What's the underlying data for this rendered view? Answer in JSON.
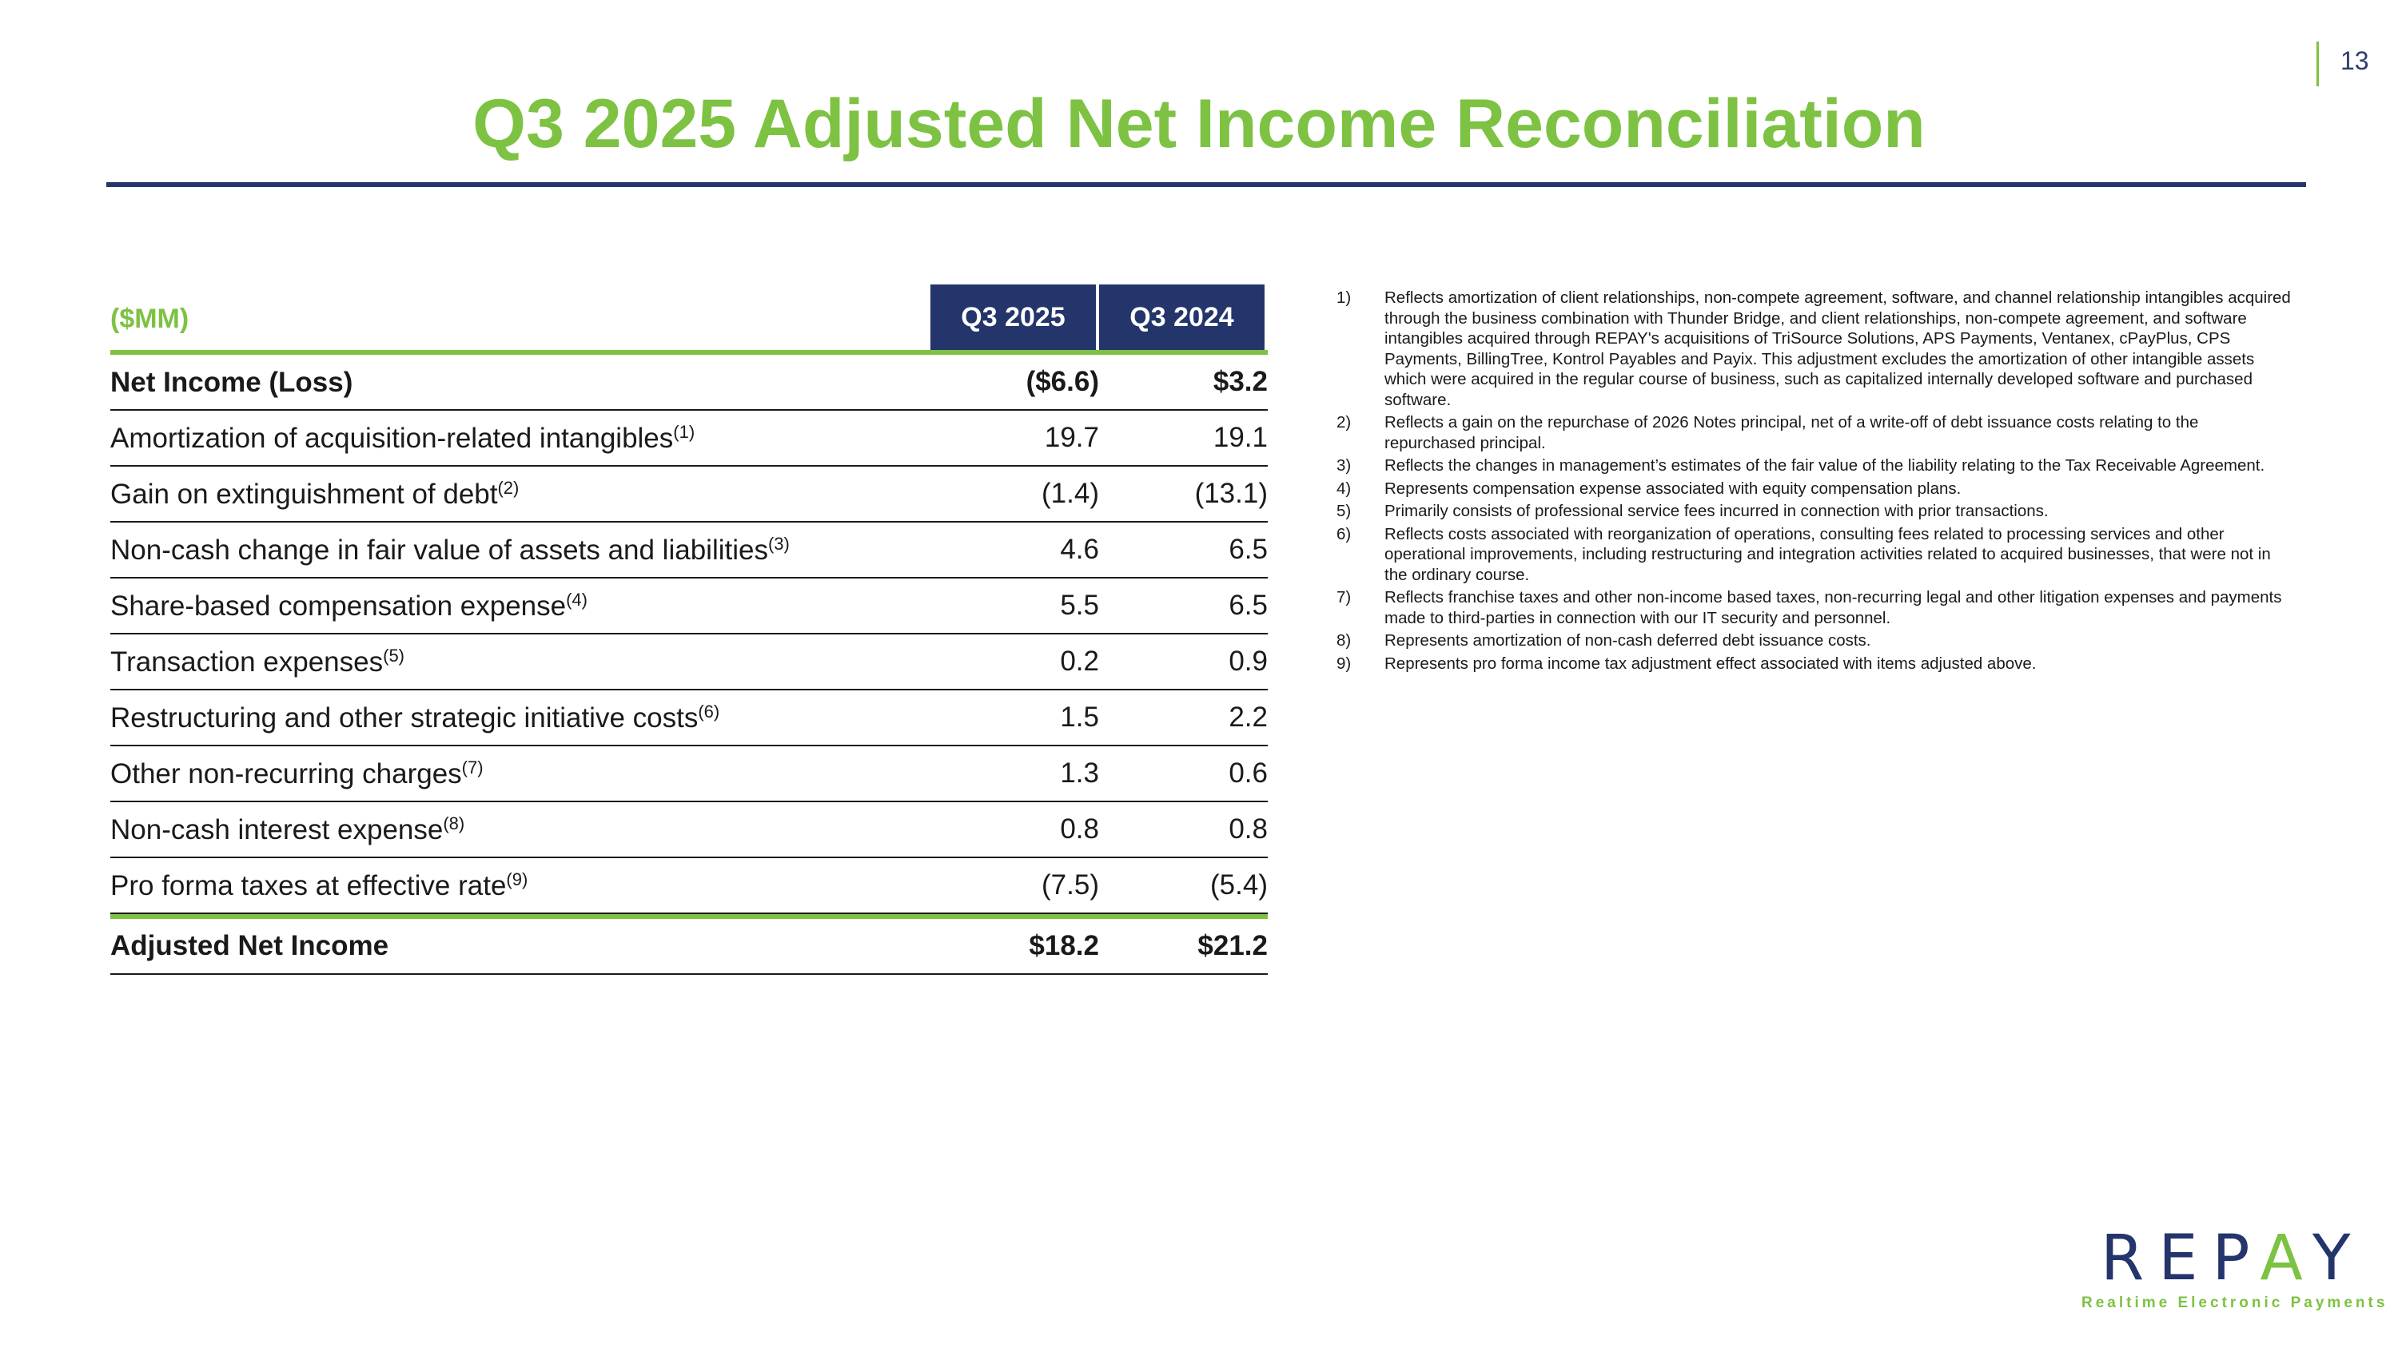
{
  "page_number": "13",
  "title": "Q3 2025 Adjusted Net Income Reconciliation",
  "table": {
    "unit_label": "($MM)",
    "columns": [
      "Q3 2025",
      "Q3 2024"
    ],
    "rows": [
      {
        "label": "Net Income (Loss)",
        "note": "",
        "v1": "($6.6)",
        "v2": "$3.2"
      },
      {
        "label": "Amortization of acquisition-related intangibles",
        "note": "(1)",
        "v1": "19.7",
        "v2": "19.1"
      },
      {
        "label": "Gain on extinguishment of debt",
        "note": "(2)",
        "v1": "(1.4)",
        "v2": "(13.1)"
      },
      {
        "label": "Non-cash change in fair value of assets and liabilities",
        "note": "(3)",
        "v1": "4.6",
        "v2": "6.5"
      },
      {
        "label": "Share-based compensation expense",
        "note": "(4)",
        "v1": "5.5",
        "v2": "6.5"
      },
      {
        "label": "Transaction expenses",
        "note": "(5)",
        "v1": "0.2",
        "v2": "0.9"
      },
      {
        "label": "Restructuring and other strategic initiative costs",
        "note": "(6)",
        "v1": "1.5",
        "v2": "2.2"
      },
      {
        "label": "Other non-recurring charges",
        "note": "(7)",
        "v1": "1.3",
        "v2": "0.6"
      },
      {
        "label": "Non-cash interest expense",
        "note": "(8)",
        "v1": "0.8",
        "v2": "0.8"
      },
      {
        "label": "Pro forma taxes at effective rate",
        "note": "(9)",
        "v1": "(7.5)",
        "v2": "(5.4)"
      }
    ],
    "total": {
      "label": "Adjusted Net Income",
      "v1": "$18.2",
      "v2": "$21.2"
    }
  },
  "footnotes": [
    {
      "num": "1)",
      "text": "Reflects amortization of client relationships, non-compete agreement, software, and channel relationship intangibles acquired through the business combination with Thunder Bridge, and client relationships, non-compete agreement, and software intangibles acquired through REPAY's acquisitions of TriSource Solutions, APS Payments, Ventanex, cPayPlus, CPS Payments, BillingTree, Kontrol Payables and Payix. This adjustment excludes the amortization of other intangible assets which were acquired in the regular course of business, such as capitalized internally developed software and purchased software."
    },
    {
      "num": "2)",
      "text": "Reflects a gain on the repurchase of 2026 Notes principal, net of a write-off of debt issuance costs relating to the repurchased principal."
    },
    {
      "num": "3)",
      "text": "Reflects the changes in management’s estimates of the fair value of the liability relating to the Tax Receivable Agreement."
    },
    {
      "num": "4)",
      "text": "Represents compensation expense associated with equity compensation plans."
    },
    {
      "num": "5)",
      "text": "Primarily consists of professional service fees incurred in connection with prior transactions."
    },
    {
      "num": "6)",
      "text": "Reflects costs associated with reorganization of operations, consulting fees related to processing services and other operational improvements, including restructuring and integration activities related to acquired businesses, that were not in the ordinary course."
    },
    {
      "num": "7)",
      "text": "Reflects franchise taxes and other non-income based taxes, non-recurring legal and other litigation expenses and payments made to third-parties in connection with our IT security and personnel."
    },
    {
      "num": "8)",
      "text": "Represents amortization of non-cash deferred debt issuance costs."
    },
    {
      "num": "9)",
      "text": "Represents pro forma income tax adjustment effect associated with items adjusted above."
    }
  ],
  "logo": {
    "word_a": "REP",
    "word_mark": "A",
    "word_b": "Y",
    "tagline": "Realtime Electronic Payments"
  },
  "colors": {
    "green": "#7dc242",
    "navy": "#24356c"
  }
}
